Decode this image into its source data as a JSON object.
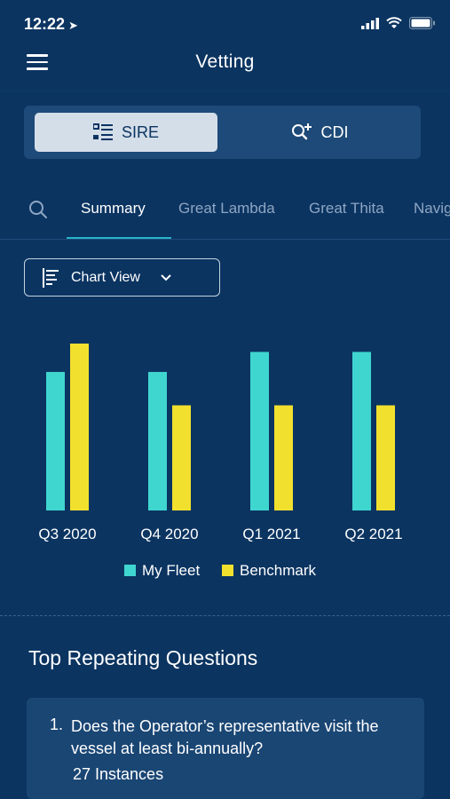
{
  "status": {
    "time": "12:22",
    "location_glyph": "➤"
  },
  "nav": {
    "title": "Vetting"
  },
  "segment": {
    "sire_label": "SIRE",
    "cdi_label": "CDI"
  },
  "tabs": [
    "Summary",
    "Great Lambda",
    "Great Thita",
    "Navig"
  ],
  "chart_view": {
    "label": "Chart View"
  },
  "colors": {
    "my_fleet": "#3fd6d0",
    "benchmark": "#f2e02e",
    "background": "#0b3461",
    "accent": "#27b3c9"
  },
  "chart_data": {
    "type": "bar",
    "categories": [
      "Q3 2020",
      "Q4 2020",
      "Q1 2021",
      "Q2 2021"
    ],
    "series": [
      {
        "name": "My Fleet",
        "values": [
          0.83,
          0.83,
          0.95,
          0.95
        ]
      },
      {
        "name": "Benchmark",
        "values": [
          1.0,
          0.63,
          0.63,
          0.63
        ]
      }
    ],
    "ylim": [
      0,
      1.0
    ],
    "grid": false,
    "legend_position": "bottom"
  },
  "section": {
    "title": "Top Repeating Questions"
  },
  "questions": [
    {
      "num": "1.",
      "text": "Does the Operator’s representative visit the vessel at least bi-annually?",
      "instances": "27 Instances"
    }
  ]
}
